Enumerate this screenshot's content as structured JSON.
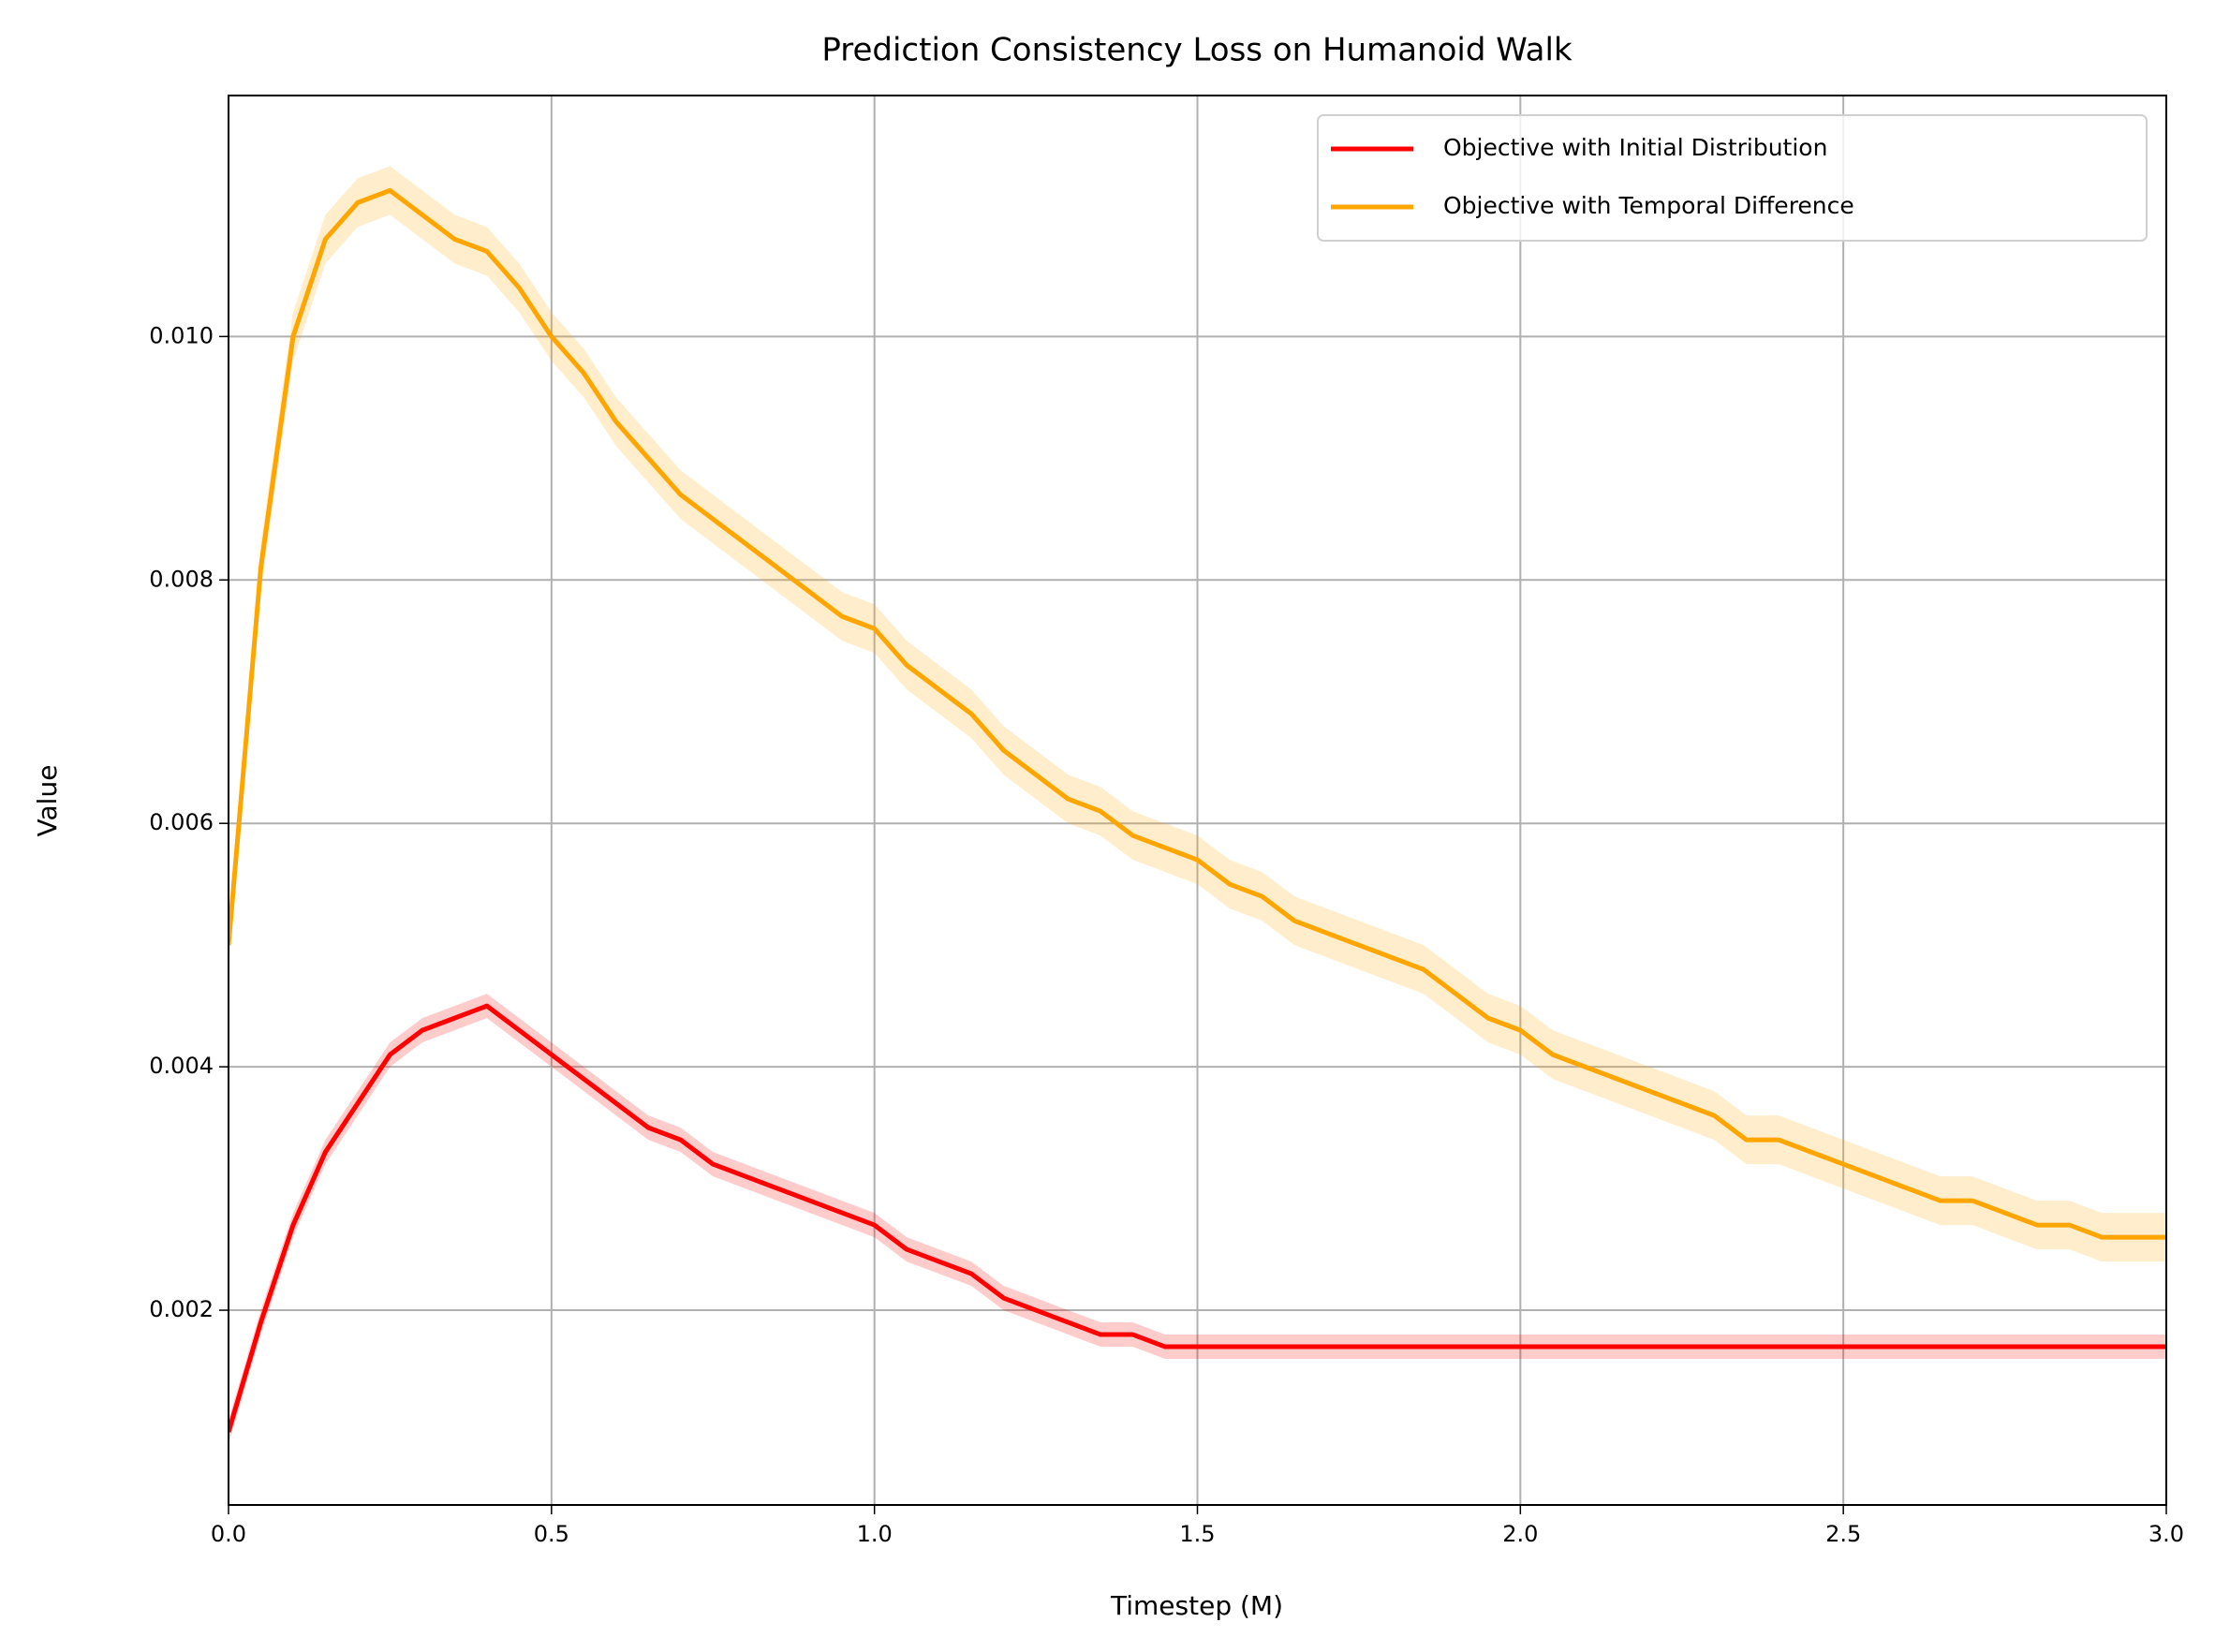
{
  "chart_data": {
    "type": "line",
    "title": "Prediction Consistency Loss on Humanoid Walk",
    "xlabel": "Timestep (M)",
    "ylabel": "Value",
    "x": [
      0,
      0.05,
      0.1,
      0.15,
      0.2,
      0.25,
      0.3,
      0.35,
      0.4,
      0.45,
      0.5,
      0.55,
      0.6,
      0.65,
      0.7,
      0.75,
      0.8,
      0.85,
      0.9,
      0.95,
      1.0,
      1.05,
      1.1,
      1.15,
      1.2,
      1.25,
      1.3,
      1.35,
      1.4,
      1.45,
      1.5,
      1.55,
      1.6,
      1.65,
      1.7,
      1.75,
      1.8,
      1.85,
      1.9,
      1.95,
      2.0,
      2.05,
      2.1,
      2.15,
      2.2,
      2.25,
      2.3,
      2.35,
      2.4,
      2.45,
      2.5,
      2.55,
      2.6,
      2.65,
      2.7,
      2.75,
      2.8,
      2.85,
      2.9,
      2.95,
      3.0
    ],
    "series": [
      {
        "name": "Objective with Initial Distribution",
        "color": "#ff0000",
        "values": [
          0.001,
          0.0019,
          0.0027,
          0.0033,
          0.0037,
          0.0041,
          0.0043,
          0.0044,
          0.0045,
          0.0043,
          0.0041,
          0.0039,
          0.0037,
          0.0035,
          0.0034,
          0.0032,
          0.0031,
          0.003,
          0.0029,
          0.0028,
          0.0027,
          0.0025,
          0.0024,
          0.0023,
          0.0021,
          0.002,
          0.0019,
          0.0018,
          0.0018,
          0.0017,
          0.0017,
          0.0017,
          0.0017,
          0.0017,
          0.0017,
          0.0017,
          0.0017,
          0.0017,
          0.0017,
          0.0017,
          0.0017,
          0.0017,
          0.0017,
          0.0017,
          0.0017,
          0.0017,
          0.0017,
          0.0017,
          0.0017,
          0.0017,
          0.0017,
          0.0017,
          0.0017,
          0.0017,
          0.0017,
          0.0017,
          0.0017,
          0.0017,
          0.0017,
          0.0017,
          0.0017
        ],
        "errors": [
          0.0001,
          0.0001,
          0.0001,
          0.0001,
          0.0001,
          0.0001,
          0.0001,
          0.0001,
          0.0001,
          0.0001,
          0.0001,
          0.0001,
          0.0001,
          0.0001,
          0.0001,
          0.0001,
          0.0001,
          0.0001,
          0.0001,
          0.0001,
          0.0001,
          0.0001,
          0.0001,
          0.0001,
          0.0001,
          0.0001,
          0.0001,
          0.0001,
          0.0001,
          0.0001,
          0.0001,
          0.0001,
          0.0001,
          0.0001,
          0.0001,
          0.0001,
          0.0001,
          0.0001,
          0.0001,
          0.0001,
          0.0001,
          0.0001,
          0.0001,
          0.0001,
          0.0001,
          0.0001,
          0.0001,
          0.0001,
          0.0001,
          0.0001,
          0.0001,
          0.0001,
          0.0001,
          0.0001,
          0.0001,
          0.0001,
          0.0001,
          0.0001,
          0.0001,
          0.0001,
          0.0001
        ]
      },
      {
        "name": "Objective with Temporal Difference",
        "color": "#ffa500",
        "values": [
          0.005,
          0.0081,
          0.01,
          0.0108,
          0.0111,
          0.0112,
          0.011,
          0.0108,
          0.0107,
          0.0104,
          0.01,
          0.0097,
          0.0093,
          0.009,
          0.0087,
          0.0085,
          0.0083,
          0.0081,
          0.0079,
          0.0077,
          0.0076,
          0.0073,
          0.0071,
          0.0069,
          0.0066,
          0.0064,
          0.0062,
          0.0061,
          0.0059,
          0.0058,
          0.0057,
          0.0055,
          0.0054,
          0.0052,
          0.0051,
          0.005,
          0.0049,
          0.0048,
          0.0046,
          0.0044,
          0.0043,
          0.0041,
          0.004,
          0.0039,
          0.0038,
          0.0037,
          0.0036,
          0.0034,
          0.0034,
          0.0033,
          0.0032,
          0.0031,
          0.003,
          0.0029,
          0.0029,
          0.0028,
          0.0027,
          0.0027,
          0.0026,
          0.0026,
          0.0026
        ],
        "errors": [
          0.0002,
          0.0002,
          0.0002,
          0.0002,
          0.0002,
          0.0002,
          0.0002,
          0.0002,
          0.0002,
          0.0002,
          0.0002,
          0.0002,
          0.0002,
          0.0002,
          0.0002,
          0.0002,
          0.0002,
          0.0002,
          0.0002,
          0.0002,
          0.0002,
          0.0002,
          0.0002,
          0.0002,
          0.0002,
          0.0002,
          0.0002,
          0.0002,
          0.0002,
          0.0002,
          0.0002,
          0.0002,
          0.0002,
          0.0002,
          0.0002,
          0.0002,
          0.0002,
          0.0002,
          0.0002,
          0.0002,
          0.0002,
          0.0002,
          0.0002,
          0.0002,
          0.0002,
          0.0002,
          0.0002,
          0.0002,
          0.0002,
          0.0002,
          0.0002,
          0.0002,
          0.0002,
          0.0002,
          0.0002,
          0.0002,
          0.0002,
          0.0002,
          0.0002,
          0.0002,
          0.0002
        ]
      }
    ],
    "xlim": [
      0,
      3
    ],
    "xticks": [
      {
        "value": 0,
        "label": "0.0"
      },
      {
        "value": 0.5,
        "label": "0.5"
      },
      {
        "value": 1,
        "label": "1.0"
      },
      {
        "value": 1.5,
        "label": "1.5"
      },
      {
        "value": 2,
        "label": "2.0"
      },
      {
        "value": 2.5,
        "label": "2.5"
      },
      {
        "value": 3,
        "label": "3.0"
      }
    ],
    "ylim": [
      0.0004,
      0.01198
    ],
    "yticks": [
      0.002,
      0.004,
      0.006,
      0.008,
      {
        "value": 0.01,
        "label": "0.010"
      }
    ],
    "grid": true,
    "legend": "upper right"
  }
}
